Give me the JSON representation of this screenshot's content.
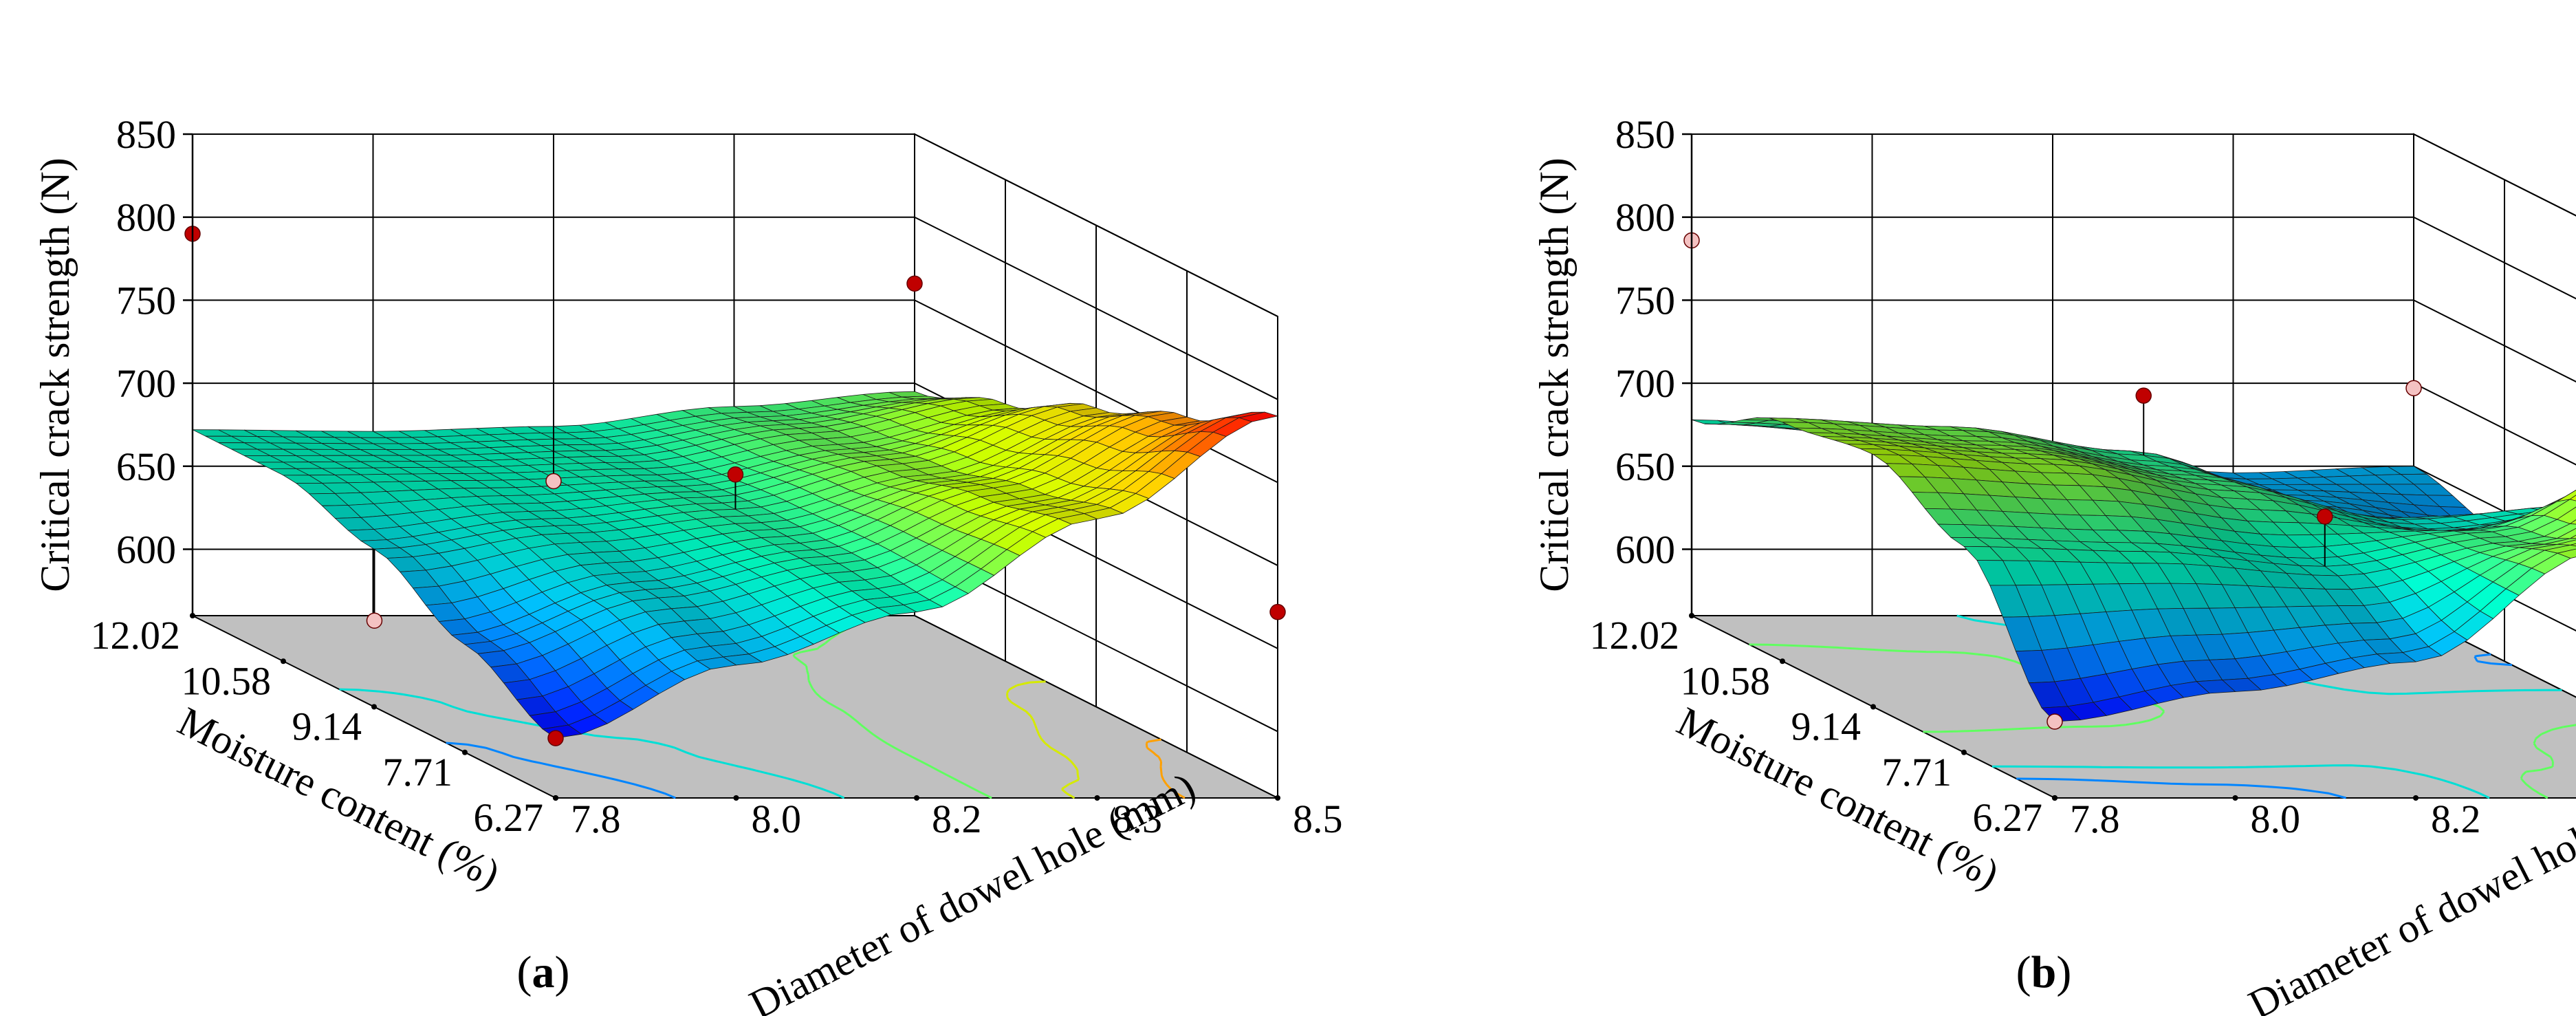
{
  "chart_data": [
    {
      "type": "surface3d",
      "panel_label": "a",
      "zlabel": "Critical crack strength (N)",
      "xlabel": "Moisture content (%)",
      "ylabel": "Diameter of dowel hole (mm)",
      "x_ticks": [
        "12.02",
        "10.58",
        "9.14",
        "7.71",
        "6.27"
      ],
      "y_ticks": [
        "7.8",
        "8.0",
        "8.2",
        "8.3",
        "8.5"
      ],
      "z_ticks": [
        "600",
        "650",
        "700",
        "750",
        "800",
        "850"
      ],
      "xlim": [
        6.27,
        12.02
      ],
      "ylim": [
        7.8,
        8.5
      ],
      "zlim": [
        560,
        850
      ],
      "surface": {
        "x": [
          6.27,
          7.71,
          9.14,
          10.58,
          12.02
        ],
        "y": [
          7.8,
          7.975,
          8.15,
          8.325,
          8.5
        ],
        "z": [
          [
            596,
            625,
            655,
            672,
            672
          ],
          [
            640,
            658,
            669,
            673,
            671
          ],
          [
            672,
            678,
            679,
            676,
            674
          ],
          [
            728,
            716,
            703,
            694,
            686
          ],
          [
            790,
            762,
            740,
            715,
            695
          ]
        ]
      },
      "design_points": [
        {
          "x": 6.27,
          "y": 7.8,
          "z": 596,
          "above_surface": true
        },
        {
          "x": 12.02,
          "y": 7.8,
          "z": 790,
          "above_surface": true
        },
        {
          "x": 6.27,
          "y": 8.5,
          "z": 672,
          "above_surface": true
        },
        {
          "x": 12.02,
          "y": 8.5,
          "z": 760,
          "above_surface": true
        },
        {
          "x": 9.14,
          "y": 8.15,
          "z": 700,
          "above_surface": true
        },
        {
          "x": 9.14,
          "y": 7.8,
          "z": 612,
          "above_surface": false
        },
        {
          "x": 12.02,
          "y": 8.15,
          "z": 641,
          "above_surface": false
        }
      ]
    },
    {
      "type": "surface3d",
      "panel_label": "b",
      "zlabel": "Critical crack strength (N)",
      "xlabel": "Moisture content (%)",
      "ylabel": "Diameter of dowel hole (mm)",
      "x_ticks": [
        "12.02",
        "10.58",
        "9.14",
        "7.71",
        "6.27"
      ],
      "y_ticks": [
        "7.8",
        "8.0",
        "8.2",
        "8.3",
        "8.5"
      ],
      "z_ticks": [
        "600",
        "650",
        "700",
        "750",
        "800",
        "850"
      ],
      "xlim": [
        6.27,
        12.02
      ],
      "ylim": [
        7.8,
        8.5
      ],
      "zlim": [
        560,
        850
      ],
      "surface": {
        "x": [
          6.27,
          7.71,
          9.14,
          10.58,
          12.02
        ],
        "y": [
          7.8,
          7.975,
          8.15,
          8.325,
          8.5
        ],
        "z": [
          [
            606,
            684,
            712,
            704,
            678
          ],
          [
            624,
            681,
            706,
            699,
            671
          ],
          [
            642,
            672,
            690,
            684,
            660
          ],
          [
            708,
            690,
            670,
            650,
            646
          ],
          [
            786,
            742,
            680,
            635,
            650
          ]
        ]
      },
      "design_points": [
        {
          "x": 12.02,
          "y": 7.8,
          "z": 786,
          "above_surface": false
        },
        {
          "x": 6.27,
          "y": 7.8,
          "z": 606,
          "above_surface": false
        },
        {
          "x": 6.27,
          "y": 8.5,
          "z": 678,
          "above_surface": false
        },
        {
          "x": 12.02,
          "y": 8.5,
          "z": 697,
          "above_surface": false
        },
        {
          "x": 10.58,
          "y": 8.15,
          "z": 720,
          "above_surface": true
        },
        {
          "x": 7.71,
          "y": 8.15,
          "z": 702,
          "above_surface": true
        },
        {
          "x": 7.71,
          "y": 8.5,
          "z": 726,
          "above_surface": true
        }
      ]
    }
  ],
  "colors": {
    "floor": "#c0c0c0",
    "grid": "#000000",
    "point_above": "#c00000",
    "point_below": "#f4c2c2",
    "colormap": [
      "#0000ff",
      "#00a0ff",
      "#00ffc0",
      "#c0ff00",
      "#ffc000",
      "#ff0000"
    ]
  }
}
